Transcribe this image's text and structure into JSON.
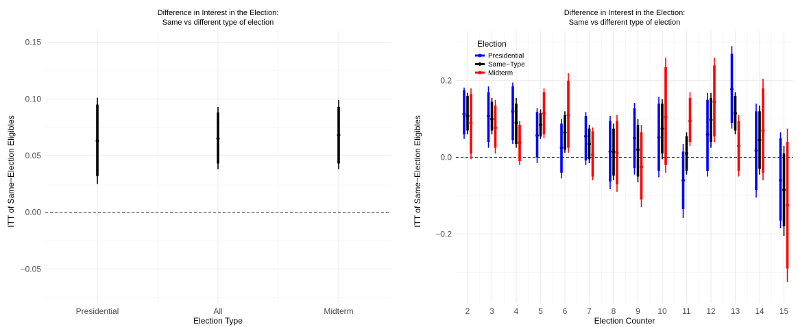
{
  "chart_data": [
    {
      "type": "errorbar",
      "title_lines": [
        "Difference in Interest in the Election:",
        "Same vs different type of election"
      ],
      "xlabel": "Election Type",
      "ylabel": "ITT of Same−Election Eligibles",
      "categories": [
        "Presidential",
        "All",
        "Midterm"
      ],
      "ylim": [
        -0.08,
        0.16
      ],
      "yticks": [
        -0.05,
        0.0,
        0.05,
        0.1,
        0.15
      ],
      "ytick_labels": [
        "−0.05",
        "0.00",
        "0.05",
        "0.10",
        "0.15"
      ],
      "reference_line": 0,
      "grid": true,
      "series": [
        {
          "color": "#000000",
          "points": [
            {
              "estimate": 0.063,
              "ci90": [
                0.032,
                0.095
              ],
              "ci95": [
                0.025,
                0.101
              ]
            },
            {
              "estimate": 0.065,
              "ci90": [
                0.043,
                0.088
              ],
              "ci95": [
                0.038,
                0.093
              ]
            },
            {
              "estimate": 0.068,
              "ci90": [
                0.043,
                0.093
              ],
              "ci95": [
                0.038,
                0.099
              ]
            }
          ]
        }
      ]
    },
    {
      "type": "errorbar",
      "title_lines": [
        "Difference in Interest in the Election:",
        "Same vs different type of election"
      ],
      "xlabel": "Election Counter",
      "ylabel": "ITT of Same−Election Eligibles",
      "categories": [
        "2",
        "3",
        "4",
        "5",
        "6",
        "7",
        "8",
        "9",
        "10",
        "11",
        "12",
        "13",
        "14",
        "15"
      ],
      "ylim": [
        -0.38,
        0.33
      ],
      "yticks": [
        -0.2,
        0.0,
        0.2
      ],
      "ytick_labels": [
        "−0.2",
        "0.0",
        "0.2"
      ],
      "reference_line": 0,
      "grid": true,
      "legend": {
        "title": "Election",
        "position": "top-left",
        "entries": [
          {
            "label": "Presidential",
            "color": "#0000ff"
          },
          {
            "label": "Same−Type",
            "color": "#000000"
          },
          {
            "label": "Midterm",
            "color": "#ff0000"
          }
        ]
      },
      "series": [
        {
          "name": "Presidential",
          "color": "#0000ff",
          "points": [
            {
              "estimate": 0.113,
              "ci90": [
                0.06,
                0.175
              ],
              "ci95": [
                0.048,
                0.182
              ]
            },
            {
              "estimate": 0.108,
              "ci90": [
                0.04,
                0.17
              ],
              "ci95": [
                0.025,
                0.185
              ]
            },
            {
              "estimate": 0.12,
              "ci90": [
                0.045,
                0.185
              ],
              "ci95": [
                0.035,
                0.195
              ]
            },
            {
              "estimate": 0.057,
              "ci90": [
                0.0,
                0.118
              ],
              "ci95": [
                -0.015,
                0.128
              ]
            },
            {
              "estimate": 0.025,
              "ci90": [
                -0.04,
                0.088
              ],
              "ci95": [
                -0.055,
                0.1
              ]
            },
            {
              "estimate": 0.055,
              "ci90": [
                -0.008,
                0.108
              ],
              "ci95": [
                -0.02,
                0.118
              ]
            },
            {
              "estimate": 0.015,
              "ci90": [
                -0.063,
                0.095
              ],
              "ci95": [
                -0.083,
                0.108
              ]
            },
            {
              "estimate": 0.05,
              "ci90": [
                -0.028,
                0.128
              ],
              "ci95": [
                -0.045,
                0.142
              ]
            },
            {
              "estimate": 0.052,
              "ci90": [
                -0.035,
                0.14
              ],
              "ci95": [
                -0.052,
                0.158
              ]
            },
            {
              "estimate": -0.06,
              "ci90": [
                -0.135,
                0.015
              ],
              "ci95": [
                -0.158,
                0.035
              ]
            },
            {
              "estimate": 0.06,
              "ci90": [
                -0.035,
                0.15
              ],
              "ci95": [
                -0.05,
                0.168
              ]
            },
            {
              "estimate": 0.178,
              "ci90": [
                0.09,
                0.27
              ],
              "ci95": [
                0.075,
                0.29
              ]
            },
            {
              "estimate": 0.018,
              "ci90": [
                -0.085,
                0.12
              ],
              "ci95": [
                -0.105,
                0.14
              ]
            },
            {
              "estimate": -0.06,
              "ci90": [
                -0.165,
                0.05
              ],
              "ci95": [
                -0.185,
                0.065
              ]
            }
          ]
        },
        {
          "name": "Same−Type",
          "color": "#000000",
          "points": [
            {
              "estimate": 0.108,
              "ci90": [
                0.07,
                0.16
              ],
              "ci95": [
                0.06,
                0.168
              ]
            },
            {
              "estimate": 0.1,
              "ci90": [
                0.07,
                0.145
              ],
              "ci95": [
                0.06,
                0.155
              ]
            },
            {
              "estimate": 0.09,
              "ci90": [
                0.035,
                0.14
              ],
              "ci95": [
                0.025,
                0.155
              ]
            },
            {
              "estimate": 0.085,
              "ci90": [
                0.055,
                0.115
              ],
              "ci95": [
                0.048,
                0.125
              ]
            },
            {
              "estimate": 0.065,
              "ci90": [
                0.02,
                0.11
              ],
              "ci95": [
                0.012,
                0.12
              ]
            },
            {
              "estimate": 0.035,
              "ci90": [
                -0.005,
                0.075
              ],
              "ci95": [
                -0.015,
                0.085
              ]
            },
            {
              "estimate": 0.015,
              "ci90": [
                -0.048,
                0.075
              ],
              "ci95": [
                -0.06,
                0.088
              ]
            },
            {
              "estimate": 0.02,
              "ci90": [
                -0.05,
                0.085
              ],
              "ci95": [
                -0.065,
                0.1
              ]
            },
            {
              "estimate": 0.075,
              "ci90": [
                0.01,
                0.14
              ],
              "ci95": [
                -0.005,
                0.152
              ]
            },
            {
              "estimate": 0.01,
              "ci90": [
                -0.035,
                0.055
              ],
              "ci95": [
                -0.045,
                0.065
              ]
            },
            {
              "estimate": 0.098,
              "ci90": [
                0.04,
                0.155
              ],
              "ci95": [
                0.025,
                0.168
              ]
            },
            {
              "estimate": 0.115,
              "ci90": [
                0.07,
                0.16
              ],
              "ci95": [
                0.06,
                0.17
              ]
            },
            {
              "estimate": 0.045,
              "ci90": [
                -0.03,
                0.12
              ],
              "ci95": [
                -0.045,
                0.135
              ]
            },
            {
              "estimate": -0.085,
              "ci90": [
                -0.18,
                0.01
              ],
              "ci95": [
                -0.205,
                0.03
              ]
            }
          ]
        },
        {
          "name": "Midterm",
          "color": "#ff0000",
          "points": [
            {
              "estimate": 0.09,
              "ci90": [
                0.01,
                0.165
              ],
              "ci95": [
                -0.005,
                0.18
              ]
            },
            {
              "estimate": 0.077,
              "ci90": [
                0.025,
                0.135
              ],
              "ci95": [
                0.01,
                0.15
              ]
            },
            {
              "estimate": 0.038,
              "ci90": [
                -0.01,
                0.085
              ],
              "ci95": [
                -0.02,
                0.095
              ]
            },
            {
              "estimate": 0.115,
              "ci90": [
                0.06,
                0.17
              ],
              "ci95": [
                0.05,
                0.18
              ]
            },
            {
              "estimate": 0.11,
              "ci90": [
                0.025,
                0.2
              ],
              "ci95": [
                0.012,
                0.22
              ]
            },
            {
              "estimate": 0.007,
              "ci90": [
                -0.05,
                0.068
              ],
              "ci95": [
                -0.06,
                0.078
              ]
            },
            {
              "estimate": 0.012,
              "ci90": [
                -0.07,
                0.095
              ],
              "ci95": [
                -0.09,
                0.11
              ]
            },
            {
              "estimate": -0.025,
              "ci90": [
                -0.11,
                0.065
              ],
              "ci95": [
                -0.13,
                0.085
              ]
            },
            {
              "estimate": 0.105,
              "ci90": [
                -0.02,
                0.235
              ],
              "ci95": [
                -0.04,
                0.26
              ]
            },
            {
              "estimate": 0.095,
              "ci90": [
                0.04,
                0.155
              ],
              "ci95": [
                0.03,
                0.17
              ]
            },
            {
              "estimate": 0.145,
              "ci90": [
                0.055,
                0.24
              ],
              "ci95": [
                0.04,
                0.26
              ]
            },
            {
              "estimate": 0.03,
              "ci90": [
                -0.035,
                0.095
              ],
              "ci95": [
                -0.05,
                0.11
              ]
            },
            {
              "estimate": 0.07,
              "ci90": [
                -0.04,
                0.18
              ],
              "ci95": [
                -0.06,
                0.205
              ]
            },
            {
              "estimate": -0.125,
              "ci90": [
                -0.29,
                0.04
              ],
              "ci95": [
                -0.325,
                0.075
              ]
            }
          ]
        }
      ]
    }
  ]
}
